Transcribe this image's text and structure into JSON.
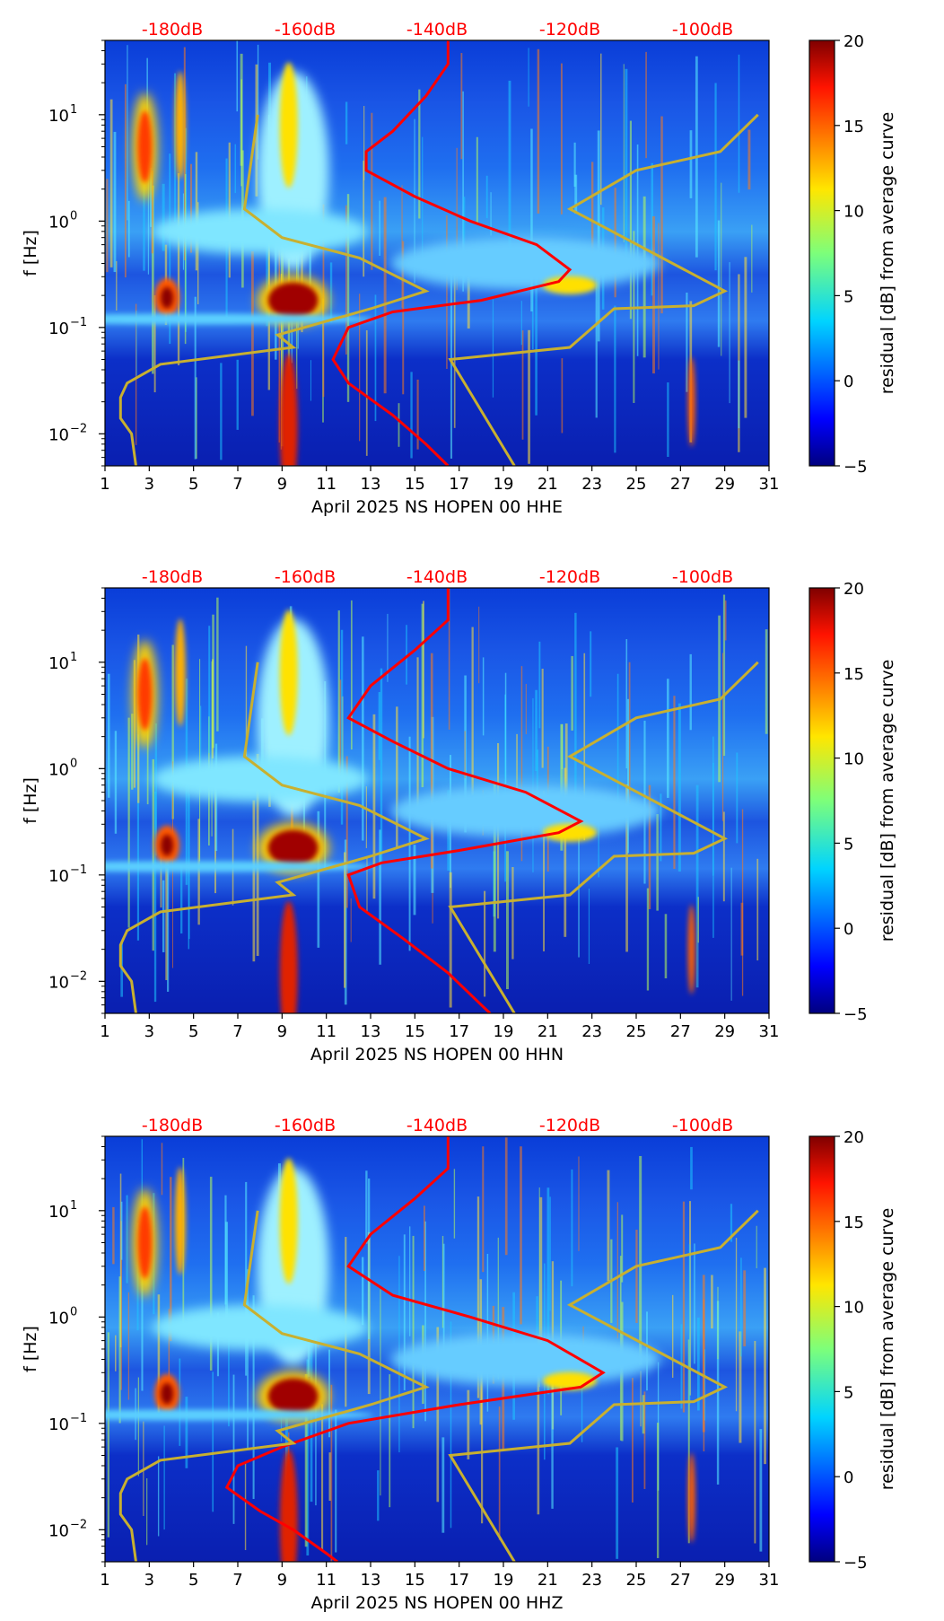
{
  "chart_data": [
    {
      "type": "heatmap",
      "xlabel": "April 2025 NS HOPEN 00 HHE",
      "ylabel": "f [Hz]",
      "xlim": [
        1,
        31
      ],
      "ylim": [
        0.005,
        50
      ],
      "y_scale": "log",
      "x_ticks": [
        "1",
        "3",
        "5",
        "7",
        "9",
        "11",
        "13",
        "15",
        "17",
        "19",
        "21",
        "23",
        "25",
        "27",
        "29",
        "31"
      ],
      "top_labels": [
        "-180dB",
        "-160dB",
        "-140dB",
        "-120dB",
        "-100dB"
      ],
      "colorbar": {
        "label": "residual [dB] from average curve",
        "ticks": [
          "−5",
          "0",
          "5",
          "10",
          "15",
          "20"
        ],
        "range": [
          -5,
          20
        ]
      },
      "reference_curves": [
        {
          "color": "#c8b030",
          "points": [
            [
              7.9,
              10
            ],
            [
              7.3,
              1.3
            ],
            [
              9.0,
              0.7
            ],
            [
              12.5,
              0.45
            ],
            [
              15.5,
              0.22
            ],
            [
              13.0,
              0.15
            ],
            [
              8.8,
              0.085
            ],
            [
              9.5,
              0.065
            ],
            [
              3.5,
              0.045
            ],
            [
              2.0,
              0.03
            ],
            [
              1.7,
              0.022
            ],
            [
              1.7,
              0.014
            ],
            [
              2.2,
              0.01
            ],
            [
              2.4,
              0.005
            ]
          ]
        },
        {
          "color": "#c8b030",
          "points": [
            [
              30.5,
              10
            ],
            [
              28.8,
              4.5
            ],
            [
              25.0,
              3.0
            ],
            [
              22.0,
              1.3
            ],
            [
              29.0,
              0.22
            ],
            [
              27.6,
              0.16
            ],
            [
              24.0,
              0.15
            ],
            [
              22.0,
              0.065
            ],
            [
              16.6,
              0.05
            ],
            [
              19.5,
              0.005
            ]
          ]
        }
      ],
      "red_curve": [
        [
          16.5,
          50
        ],
        [
          16.5,
          30
        ],
        [
          15.5,
          15
        ],
        [
          14.0,
          7
        ],
        [
          12.8,
          4.5
        ],
        [
          12.8,
          3.0
        ],
        [
          15.0,
          1.7
        ],
        [
          17.5,
          1.0
        ],
        [
          20.5,
          0.6
        ],
        [
          22.0,
          0.35
        ],
        [
          21.5,
          0.27
        ],
        [
          18.0,
          0.18
        ],
        [
          14.0,
          0.14
        ],
        [
          12.0,
          0.1
        ],
        [
          11.3,
          0.05
        ],
        [
          12.0,
          0.03
        ],
        [
          14.0,
          0.015
        ],
        [
          15.5,
          0.008
        ],
        [
          16.5,
          0.005
        ]
      ]
    },
    {
      "type": "heatmap",
      "xlabel": "April 2025 NS HOPEN 00 HHN",
      "ylabel": "f [Hz]",
      "xlim": [
        1,
        31
      ],
      "ylim": [
        0.005,
        50
      ],
      "y_scale": "log",
      "x_ticks": [
        "1",
        "3",
        "5",
        "7",
        "9",
        "11",
        "13",
        "15",
        "17",
        "19",
        "21",
        "23",
        "25",
        "27",
        "29",
        "31"
      ],
      "top_labels": [
        "-180dB",
        "-160dB",
        "-140dB",
        "-120dB",
        "-100dB"
      ],
      "colorbar": {
        "label": "residual [dB] from average curve",
        "ticks": [
          "−5",
          "0",
          "5",
          "10",
          "15",
          "20"
        ],
        "range": [
          -5,
          20
        ]
      },
      "reference_curves": [
        {
          "color": "#c8b030",
          "points": [
            [
              7.9,
              10
            ],
            [
              7.3,
              1.3
            ],
            [
              9.0,
              0.7
            ],
            [
              12.5,
              0.45
            ],
            [
              15.5,
              0.22
            ],
            [
              13.0,
              0.15
            ],
            [
              8.8,
              0.085
            ],
            [
              9.5,
              0.065
            ],
            [
              3.5,
              0.045
            ],
            [
              2.0,
              0.03
            ],
            [
              1.7,
              0.022
            ],
            [
              1.7,
              0.014
            ],
            [
              2.2,
              0.01
            ],
            [
              2.4,
              0.005
            ]
          ]
        },
        {
          "color": "#c8b030",
          "points": [
            [
              30.5,
              10
            ],
            [
              28.8,
              4.5
            ],
            [
              25.0,
              3.0
            ],
            [
              22.0,
              1.3
            ],
            [
              29.0,
              0.22
            ],
            [
              27.6,
              0.16
            ],
            [
              24.0,
              0.15
            ],
            [
              22.0,
              0.065
            ],
            [
              16.6,
              0.05
            ],
            [
              19.5,
              0.005
            ]
          ]
        }
      ],
      "red_curve": [
        [
          16.5,
          50
        ],
        [
          16.5,
          25
        ],
        [
          15.0,
          13
        ],
        [
          13.0,
          6
        ],
        [
          12.0,
          3.0
        ],
        [
          14.0,
          1.8
        ],
        [
          16.5,
          1.0
        ],
        [
          20.0,
          0.6
        ],
        [
          22.5,
          0.32
        ],
        [
          21.5,
          0.25
        ],
        [
          17.0,
          0.17
        ],
        [
          13.5,
          0.13
        ],
        [
          12.0,
          0.1
        ],
        [
          12.5,
          0.05
        ],
        [
          14.5,
          0.025
        ],
        [
          16.5,
          0.012
        ],
        [
          18.0,
          0.006
        ],
        [
          18.4,
          0.005
        ]
      ]
    },
    {
      "type": "heatmap",
      "xlabel": "April 2025 NS HOPEN 00 HHZ",
      "ylabel": "f [Hz]",
      "xlim": [
        1,
        31
      ],
      "ylim": [
        0.005,
        50
      ],
      "y_scale": "log",
      "x_ticks": [
        "1",
        "3",
        "5",
        "7",
        "9",
        "11",
        "13",
        "15",
        "17",
        "19",
        "21",
        "23",
        "25",
        "27",
        "29",
        "31"
      ],
      "top_labels": [
        "-180dB",
        "-160dB",
        "-140dB",
        "-120dB",
        "-100dB"
      ],
      "colorbar": {
        "label": "residual [dB] from average curve",
        "ticks": [
          "−5",
          "0",
          "5",
          "10",
          "15",
          "20"
        ],
        "range": [
          -5,
          20
        ]
      },
      "reference_curves": [
        {
          "color": "#c8b030",
          "points": [
            [
              7.9,
              10
            ],
            [
              7.3,
              1.3
            ],
            [
              9.0,
              0.7
            ],
            [
              12.5,
              0.45
            ],
            [
              15.5,
              0.22
            ],
            [
              13.0,
              0.15
            ],
            [
              8.8,
              0.085
            ],
            [
              9.5,
              0.065
            ],
            [
              3.5,
              0.045
            ],
            [
              2.0,
              0.03
            ],
            [
              1.7,
              0.022
            ],
            [
              1.7,
              0.014
            ],
            [
              2.2,
              0.01
            ],
            [
              2.4,
              0.005
            ]
          ]
        },
        {
          "color": "#c8b030",
          "points": [
            [
              30.5,
              10
            ],
            [
              28.8,
              4.5
            ],
            [
              25.0,
              3.0
            ],
            [
              22.0,
              1.3
            ],
            [
              29.0,
              0.22
            ],
            [
              27.6,
              0.16
            ],
            [
              24.0,
              0.15
            ],
            [
              22.0,
              0.065
            ],
            [
              16.6,
              0.05
            ],
            [
              19.5,
              0.005
            ]
          ]
        }
      ],
      "red_curve": [
        [
          16.5,
          50
        ],
        [
          16.5,
          25
        ],
        [
          15.0,
          13
        ],
        [
          13.0,
          6
        ],
        [
          12.0,
          3.0
        ],
        [
          14.0,
          1.6
        ],
        [
          17.5,
          1.0
        ],
        [
          21.0,
          0.6
        ],
        [
          23.5,
          0.3
        ],
        [
          22.5,
          0.22
        ],
        [
          17.0,
          0.15
        ],
        [
          12.0,
          0.1
        ],
        [
          9.0,
          0.06
        ],
        [
          7.0,
          0.04
        ],
        [
          6.5,
          0.025
        ],
        [
          8.0,
          0.015
        ],
        [
          9.5,
          0.01
        ],
        [
          11.0,
          0.006
        ],
        [
          11.5,
          0.005
        ]
      ]
    }
  ]
}
